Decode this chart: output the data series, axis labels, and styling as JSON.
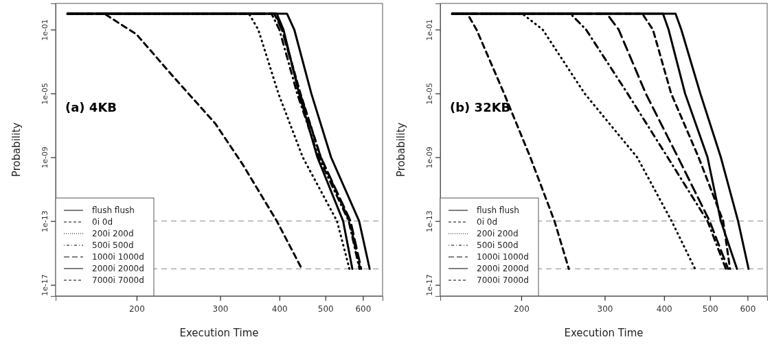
{
  "chart_data": [
    {
      "type": "line",
      "annotations": [
        "(a) 4KB"
      ],
      "xlabel": "Execution Time",
      "ylabel": "Probability",
      "log": "xy",
      "xlim": [
        135,
        660
      ],
      "ylim": [
        2e-18,
        4.4
      ],
      "xticks": [
        200,
        300,
        400,
        500,
        600
      ],
      "yticks": [
        {
          "value": 0.1,
          "label": "1e-01"
        },
        {
          "value": 1e-05,
          "label": "1e-05"
        },
        {
          "value": 1e-09,
          "label": "1e-09"
        },
        {
          "value": 1e-13,
          "label": "1e-13"
        },
        {
          "value": 1e-17,
          "label": "1e-17"
        }
      ],
      "grid": false,
      "legend": "bottom left",
      "ref_lines": [
        {
          "axis": "y",
          "value": 1e-13,
          "color": "#888888",
          "line_style": "dashed"
        },
        {
          "axis": "y",
          "value": 1e-16,
          "color": "#888888",
          "line_style": "dashed"
        }
      ],
      "series": [
        {
          "name": "flush flush",
          "color": "#000000",
          "line_style": "solid",
          "x": [
            143,
            415,
            430,
            467,
            514,
            589,
            620
          ],
          "values": [
            1,
            1,
            0.1,
            1e-05,
            1e-09,
            1e-13,
            1e-16
          ]
        },
        {
          "name": "0i 0d",
          "color": "#000000",
          "line_style": "dashed",
          "x": [
            143,
            171,
            200,
            238,
            293,
            335,
            395,
            446
          ],
          "values": [
            1,
            1,
            0.05,
            0.00013,
            1.3e-07,
            3.4e-10,
            1e-13,
            1e-16
          ]
        },
        {
          "name": "200i 200d",
          "color": "#000000",
          "line_style": "dotted",
          "x": [
            143,
            345,
            361,
            398,
            448,
            529,
            562
          ],
          "values": [
            1,
            1,
            0.1,
            1e-05,
            1e-09,
            1e-13,
            1e-16
          ]
        },
        {
          "name": "500i 500d",
          "color": "#000000",
          "line_style": "dotdash",
          "x": [
            143,
            385,
            400,
            436,
            484,
            560,
            590
          ],
          "values": [
            1,
            1,
            0.1,
            1e-05,
            1e-09,
            1e-13,
            1e-16
          ]
        },
        {
          "name": "1000i 1000d",
          "color": "#000000",
          "line_style": "longdash",
          "x": [
            143,
            390,
            405,
            442,
            489,
            565,
            595
          ],
          "values": [
            1,
            1,
            0.1,
            1e-05,
            1e-09,
            1e-13,
            1e-16
          ]
        },
        {
          "name": "2000i 2000d",
          "color": "#000000",
          "line_style": "solid",
          "x": [
            143,
            395,
            408,
            440,
            481,
            545,
            570
          ],
          "values": [
            1,
            1,
            0.1,
            1e-05,
            1e-09,
            1e-13,
            1e-16
          ]
        },
        {
          "name": "7000i 7000d",
          "color": "#000000",
          "line_style": "dashed",
          "x": [
            143,
            392,
            406,
            443,
            489,
            562,
            592
          ],
          "values": [
            1,
            1,
            0.1,
            1e-05,
            1e-09,
            1e-13,
            1e-16
          ]
        }
      ]
    },
    {
      "type": "line",
      "annotations": [
        "(b) 32KB"
      ],
      "xlabel": "Execution Time",
      "ylabel": "Probability",
      "log": "xy",
      "xlim": [
        135,
        660
      ],
      "ylim": [
        2e-18,
        4.4
      ],
      "xticks": [
        200,
        300,
        400,
        500,
        600
      ],
      "yticks": [
        {
          "value": 0.1,
          "label": "1e-01"
        },
        {
          "value": 1e-05,
          "label": "1e-05"
        },
        {
          "value": 1e-09,
          "label": "1e-09"
        },
        {
          "value": 1e-13,
          "label": "1e-13"
        },
        {
          "value": 1e-17,
          "label": "1e-17"
        }
      ],
      "grid": false,
      "legend": "bottom left",
      "ref_lines": [
        {
          "axis": "y",
          "value": 1e-13,
          "color": "#888888",
          "line_style": "dashed"
        },
        {
          "axis": "y",
          "value": 1e-16,
          "color": "#888888",
          "line_style": "dashed"
        }
      ],
      "series": [
        {
          "name": "flush flush",
          "color": "#000000",
          "line_style": "solid",
          "x": [
            143,
            423,
            435,
            477,
            527,
            573,
            603
          ],
          "values": [
            1,
            1,
            0.1,
            1e-05,
            1e-09,
            1e-13,
            1e-16
          ]
        },
        {
          "name": "0i 0d",
          "color": "#000000",
          "line_style": "dashed",
          "x": [
            143,
            154,
            161,
            184,
            209,
            235,
            252
          ],
          "values": [
            1,
            1,
            0.1,
            1e-05,
            1e-09,
            1e-13,
            1e-16
          ]
        },
        {
          "name": "200i 200d",
          "color": "#000000",
          "line_style": "dotted",
          "x": [
            143,
            201,
            222,
            272,
            351,
            415,
            465
          ],
          "values": [
            1,
            1,
            0.1,
            1e-05,
            1e-09,
            1e-13,
            1e-16
          ]
        },
        {
          "name": "500i 500d",
          "color": "#000000",
          "line_style": "dotdash",
          "x": [
            143,
            254,
            274,
            335,
            407,
            494,
            540
          ],
          "values": [
            1,
            1,
            0.1,
            1e-05,
            1e-09,
            1e-13,
            1e-16
          ]
        },
        {
          "name": "1000i 1000d",
          "color": "#000000",
          "line_style": "longdash",
          "x": [
            143,
            303,
            321,
            366,
            428,
            499,
            546
          ],
          "values": [
            1,
            1,
            0.1,
            1e-05,
            1e-09,
            1e-13,
            1e-16
          ]
        },
        {
          "name": "2000i 2000d",
          "color": "#000000",
          "line_style": "solid",
          "x": [
            143,
            398,
            409,
            443,
            494,
            527,
            570
          ],
          "values": [
            1,
            1,
            0.1,
            1e-05,
            1e-09,
            1e-13,
            1e-16
          ]
        },
        {
          "name": "7000i 7000d",
          "color": "#000000",
          "line_style": "dashed",
          "x": [
            143,
            360,
            379,
            414,
            473,
            533,
            551
          ],
          "values": [
            1,
            1,
            0.1,
            1e-05,
            1e-09,
            1e-13,
            1e-16
          ]
        }
      ]
    }
  ]
}
